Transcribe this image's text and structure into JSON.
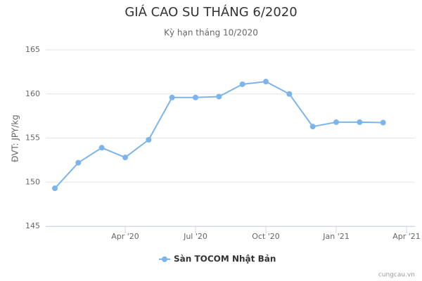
{
  "chart_data": {
    "type": "line",
    "title": "GIÁ CAO SU THÁNG 6/2020",
    "subtitle": "Kỳ hạn tháng 10/2020",
    "y_label": "ĐVT: JPY/kg",
    "credit": "cungcau.vn",
    "x": [
      "2020-01",
      "2020-02",
      "2020-03",
      "2020-04",
      "2020-05",
      "2020-06",
      "2020-07",
      "2020-08",
      "2020-09",
      "2020-10",
      "2020-11",
      "2020-12",
      "2021-01",
      "2021-02",
      "2021-03"
    ],
    "series": [
      {
        "name": "Sàn TOCOM Nhật Bản",
        "color": "#7cb5ec",
        "values": [
          149.3,
          152.2,
          153.9,
          152.8,
          154.8,
          159.6,
          159.6,
          159.7,
          161.1,
          161.4,
          160.0,
          156.3,
          156.8,
          156.8,
          156.75
        ]
      }
    ],
    "xlim": [
      "2020-01",
      "2021-04"
    ],
    "xticks": [
      {
        "value": "2020-04",
        "label": "Apr '20"
      },
      {
        "value": "2020-07",
        "label": "Jul '20"
      },
      {
        "value": "2020-10",
        "label": "Oct '20"
      },
      {
        "value": "2021-01",
        "label": "Jan '21"
      },
      {
        "value": "2021-04",
        "label": "Apr '21"
      }
    ],
    "ylim": [
      145,
      165
    ],
    "yticks": [
      145,
      150,
      155,
      160,
      165
    ],
    "grid": true
  }
}
